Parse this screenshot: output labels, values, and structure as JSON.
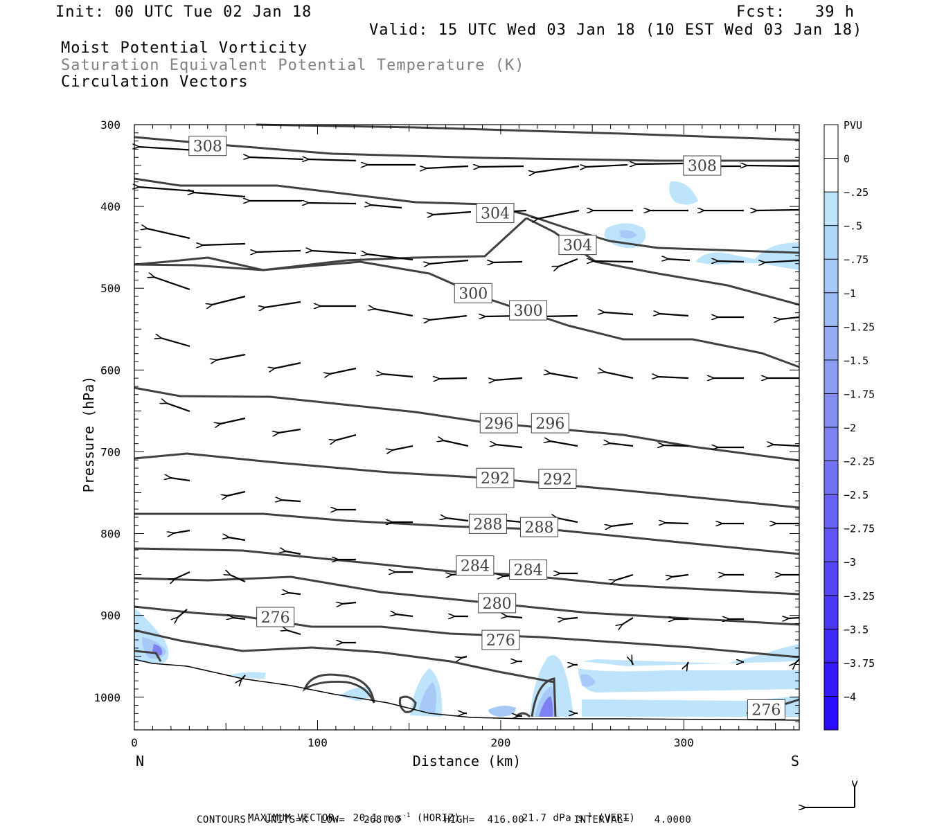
{
  "header": {
    "init": "Init: 00 UTC Tue 02 Jan 18",
    "fcst": "Fcst:   39 h",
    "valid": "Valid: 15 UTC Wed 03 Jan 18 (10 EST Wed 03 Jan 18)",
    "field1": "Moist Potential Vorticity",
    "field2": "Saturation Equivalent Potential Temperature (K)",
    "field3": "Circulation Vectors"
  },
  "footer": {
    "max_vector_label": "MAXIMUM VECTOR:",
    "horiz_value": "20.1 m s",
    "horiz_tag": "(HORIZ)",
    "vert_value": "21.7 dPa s",
    "vert_tag": "(VERT)",
    "exponent": "-1",
    "contours": "CONTOURS:  UNITS=K  LOW=   268.00       HIGH=  416.00        INTERVAL=    4.0000"
  },
  "colors": {
    "contour": "#404040",
    "vector": "#000000",
    "terrain": "#000000"
  },
  "chart_data": {
    "type": "cross-section",
    "xlabel": "Distance (km)",
    "ylabel": "Pressure (hPa)",
    "x_left_label": "N",
    "x_right_label": "S",
    "xlim": [
      0,
      363
    ],
    "ylim": [
      1040,
      300
    ],
    "x_ticks": [
      0,
      100,
      200,
      300
    ],
    "y_ticks": [
      300,
      400,
      500,
      600,
      700,
      800,
      900,
      1000
    ],
    "colorbar": {
      "title": "PVU",
      "levels": [
        "0",
        "-.25",
        "-.5",
        "-.75",
        "-1",
        "-1.25",
        "-1.5",
        "-1.75",
        "-2",
        "-2.25",
        "-2.5",
        "-2.75",
        "-3",
        "-3.25",
        "-3.5",
        "-3.75",
        "-4"
      ],
      "colors": [
        "#ffffff",
        "#ffffff",
        "#bde4fb",
        "#afd5f9",
        "#a6c9f7",
        "#9dbbf5",
        "#95acf4",
        "#8d9df3",
        "#858ff2",
        "#7d81f2",
        "#7372f3",
        "#6963f4",
        "#5f54f5",
        "#5546f7",
        "#4b37f8",
        "#4128fa",
        "#371afb",
        "#2d0bfd"
      ]
    },
    "contour_labels": [
      {
        "text": "308",
        "x": 40,
        "p": 326
      },
      {
        "text": "308",
        "x": 310,
        "p": 350
      },
      {
        "text": "304",
        "x": 197,
        "p": 408
      },
      {
        "text": "304",
        "x": 242,
        "p": 447
      },
      {
        "text": "300",
        "x": 185,
        "p": 506
      },
      {
        "text": "300",
        "x": 215,
        "p": 527
      },
      {
        "text": "296",
        "x": 199,
        "p": 665
      },
      {
        "text": "296",
        "x": 227,
        "p": 665
      },
      {
        "text": "292",
        "x": 197,
        "p": 732
      },
      {
        "text": "292",
        "x": 231,
        "p": 733
      },
      {
        "text": "288",
        "x": 193,
        "p": 788
      },
      {
        "text": "288",
        "x": 221,
        "p": 792
      },
      {
        "text": "284",
        "x": 186,
        "p": 839
      },
      {
        "text": "284",
        "x": 215,
        "p": 844
      },
      {
        "text": "280",
        "x": 198,
        "p": 885
      },
      {
        "text": "276",
        "x": 77,
        "p": 902
      },
      {
        "text": "276",
        "x": 200,
        "p": 930
      },
      {
        "text": "276",
        "x": 345,
        "p": 1015
      }
    ]
  }
}
